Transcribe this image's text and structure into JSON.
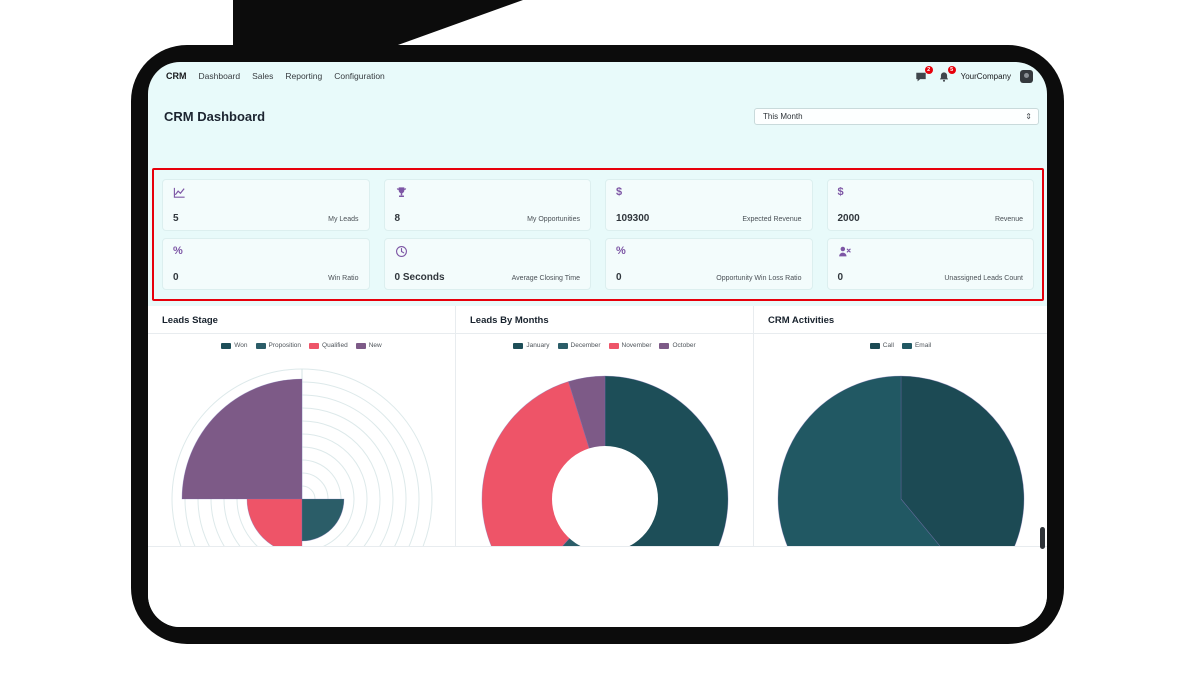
{
  "nav": {
    "brand": "CRM",
    "items": [
      {
        "label": "Dashboard"
      },
      {
        "label": "Sales"
      },
      {
        "label": "Reporting"
      },
      {
        "label": "Configuration"
      }
    ],
    "messages_badge": "2",
    "activities_badge": "5",
    "company": "YourCompany"
  },
  "header": {
    "title": "CRM Dashboard",
    "period": "This Month"
  },
  "kpis": [
    {
      "icon": "line-chart-icon",
      "value": "5",
      "label": "My Leads"
    },
    {
      "icon": "trophy-icon",
      "value": "8",
      "label": "My Opportunities"
    },
    {
      "icon": "dollar-icon",
      "glyph": "$",
      "value": "109300",
      "label": "Expected Revenue"
    },
    {
      "icon": "dollar-icon",
      "glyph": "$",
      "value": "2000",
      "label": "Revenue"
    },
    {
      "icon": "percent-icon",
      "glyph": "%",
      "value": "0",
      "label": "Win Ratio"
    },
    {
      "icon": "clock-icon",
      "value": "0 Seconds",
      "label": "Average Closing Time"
    },
    {
      "icon": "percent-icon",
      "glyph": "%",
      "value": "0",
      "label": "Opportunity Win Loss Ratio"
    },
    {
      "icon": "user-x-icon",
      "value": "0",
      "label": "Unassigned Leads Count"
    }
  ],
  "colors": {
    "accent_purple": "#7d56a5",
    "alert_border": "#e7000b",
    "teal_dark": "#1d4e58",
    "teal": "#2b5d68",
    "red": "#ee5468",
    "purple": "#7d5a87",
    "screen_bg": "#e8fafa"
  },
  "charts": [
    {
      "title": "Leads Stage",
      "type": "polar",
      "legend": [
        {
          "label": "Won",
          "color": "#1d4e58"
        },
        {
          "label": "Proposition",
          "color": "#2b5d68"
        },
        {
          "label": "Qualified",
          "color": "#ee5468"
        },
        {
          "label": "New",
          "color": "#7d5a87"
        }
      ],
      "wedges": [
        {
          "label": "New",
          "color": "#7d5a87",
          "radius": 120,
          "start": 270,
          "end": 360
        },
        {
          "label": "Qualified",
          "color": "#ee5468",
          "radius": 55,
          "start": 180,
          "end": 270
        },
        {
          "label": "Proposition",
          "color": "#2b5d68",
          "radius": 42,
          "start": 90,
          "end": 180
        }
      ]
    },
    {
      "title": "Leads By Months",
      "type": "donut",
      "inner": 53,
      "legend": [
        {
          "label": "January",
          "color": "#1d4e58"
        },
        {
          "label": "December",
          "color": "#2b5d68"
        },
        {
          "label": "November",
          "color": "#ee5468"
        },
        {
          "label": "October",
          "color": "#7d5a87"
        }
      ],
      "slices": [
        {
          "label": "January",
          "color": "#1d4e58",
          "pct": 57
        },
        {
          "label": "December",
          "color": "#2b5d68",
          "pct": 4.7
        },
        {
          "label": "November",
          "color": "#ee5468",
          "pct": 33.5
        },
        {
          "label": "October",
          "color": "#7d5a87",
          "pct": 4.8
        }
      ]
    },
    {
      "title": "CRM Activities",
      "type": "pie",
      "legend": [
        {
          "label": "Call",
          "color": "#1c4a54"
        },
        {
          "label": "Email",
          "color": "#215863"
        }
      ],
      "slices": [
        {
          "label": "Call",
          "color": "#1c4a54",
          "pct": 39
        },
        {
          "label": "Email",
          "color": "#215863",
          "pct": 61
        }
      ]
    }
  ]
}
